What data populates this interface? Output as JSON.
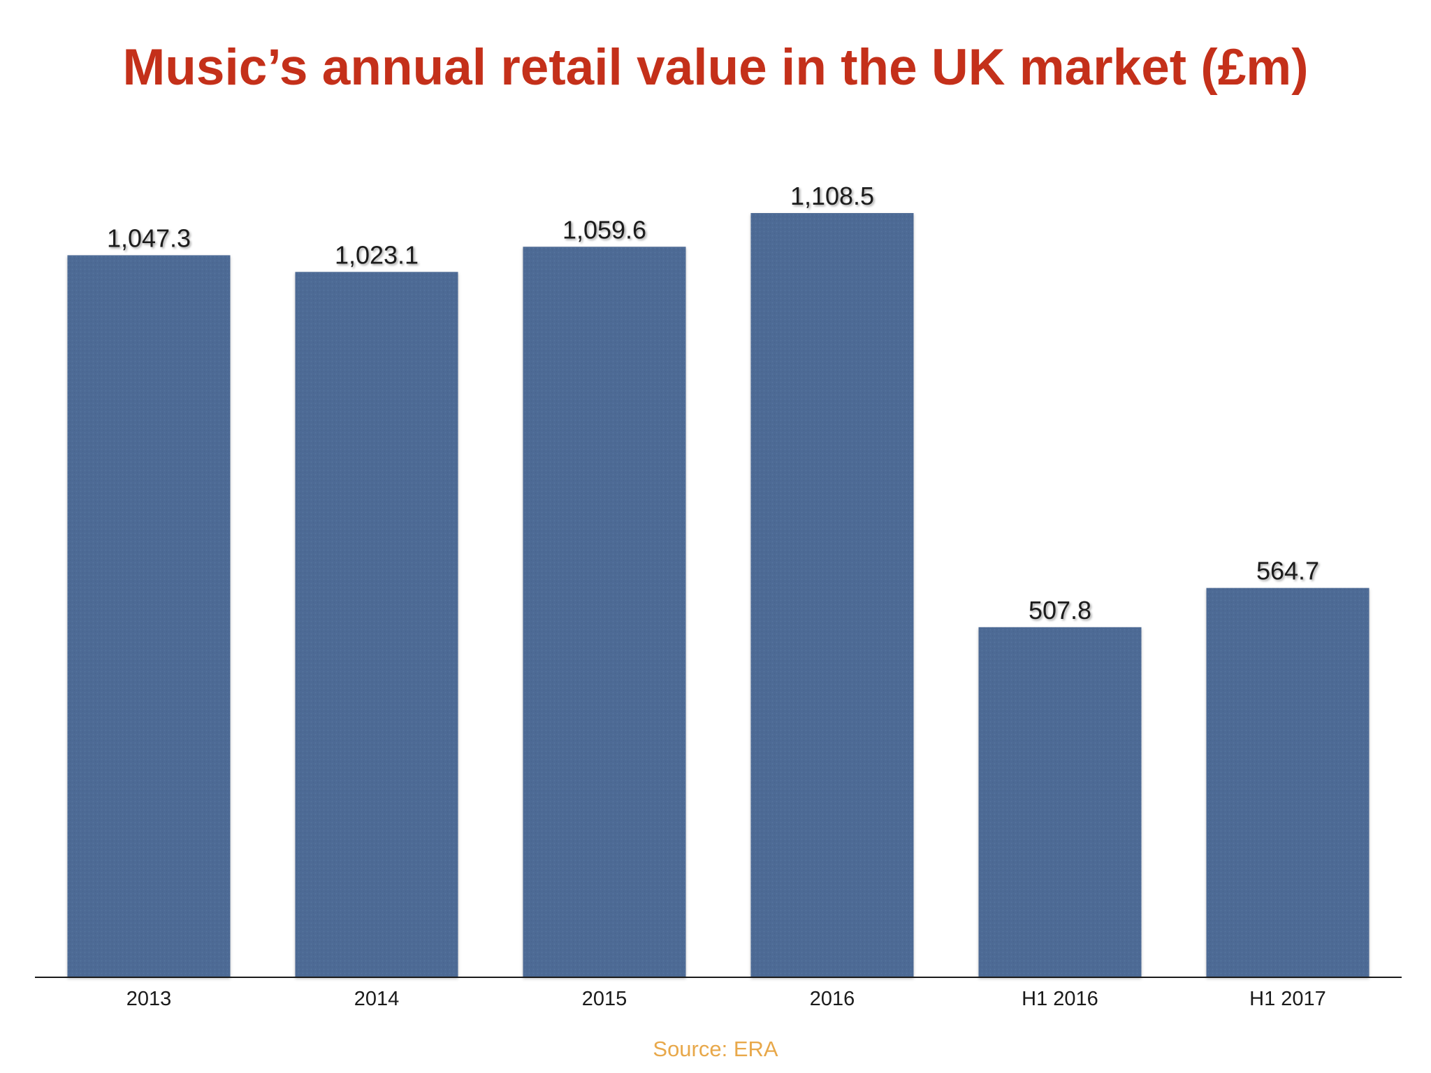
{
  "chart_data": {
    "type": "bar",
    "title": "Music’s annual retail value in the UK market (£m)",
    "categories": [
      "2013",
      "2014",
      "2015",
      "2016",
      "H1 2016",
      "H1 2017"
    ],
    "values": [
      1047.3,
      1023.1,
      1059.6,
      1108.5,
      507.8,
      564.7
    ],
    "value_labels": [
      "1,047.3",
      "1,023.1",
      "1,059.6",
      "1,108.5",
      "507.8",
      "564.7"
    ],
    "xlabel": "",
    "ylabel": "",
    "ylim": [
      0,
      1108.5
    ],
    "grid": false,
    "legend": "none",
    "bar_color": "#4e6b95",
    "title_color": "#c4301a",
    "source_color": "#e8a84a"
  },
  "source": "Source: ERA"
}
